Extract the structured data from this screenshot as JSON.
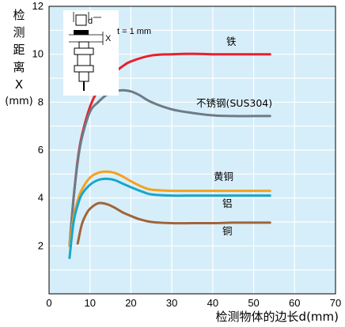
{
  "chart_data": {
    "type": "line",
    "xlabel": "检测物体的边长d(mm)",
    "ylabel_lines": [
      "检",
      "测",
      "距",
      "离",
      "X"
    ],
    "ylabel_unit": "(mm)",
    "xlim": [
      0,
      70
    ],
    "ylim": [
      0,
      12
    ],
    "x_ticks": [
      0,
      10,
      20,
      30,
      40,
      50,
      60,
      70
    ],
    "y_ticks": [
      2,
      4,
      6,
      8,
      10,
      12
    ],
    "grid": true,
    "background": "#d6eef9",
    "inset": {
      "d_label": "d",
      "x_label": "X",
      "t_label": "t = 1 mm"
    },
    "series": [
      {
        "name": "铁",
        "color": "#e8202a",
        "x": [
          5,
          6,
          7,
          8,
          10,
          12,
          15,
          18,
          20,
          25,
          30,
          35,
          40,
          45,
          50,
          54
        ],
        "y": [
          2.0,
          4.0,
          5.6,
          6.6,
          7.8,
          8.5,
          9.1,
          9.5,
          9.7,
          9.95,
          10.0,
          10.02,
          10.0,
          10.0,
          10.0,
          10.0
        ]
      },
      {
        "name": "不锈钢(SUS304)",
        "color": "#6e7b86",
        "x": [
          5,
          6,
          7,
          8,
          10,
          12,
          14,
          16,
          18,
          20,
          22,
          25,
          30,
          35,
          40,
          45,
          50,
          54
        ],
        "y": [
          2.0,
          4.0,
          5.5,
          6.5,
          7.6,
          8.0,
          8.3,
          8.45,
          8.5,
          8.45,
          8.3,
          8.0,
          7.7,
          7.55,
          7.45,
          7.42,
          7.42,
          7.42
        ]
      },
      {
        "name": "黄铜",
        "color": "#f5a01e",
        "x": [
          5,
          6,
          7,
          8,
          10,
          12,
          14,
          16,
          18,
          20,
          23,
          25,
          30,
          35,
          40,
          45,
          50,
          54
        ],
        "y": [
          2.0,
          3.2,
          3.9,
          4.35,
          4.85,
          5.05,
          5.1,
          5.05,
          4.9,
          4.7,
          4.45,
          4.35,
          4.3,
          4.3,
          4.3,
          4.3,
          4.3,
          4.3
        ]
      },
      {
        "name": "铝",
        "color": "#19a6cc",
        "x": [
          5,
          6,
          7,
          8,
          10,
          12,
          14,
          16,
          18,
          20,
          23,
          25,
          30,
          35,
          40,
          45,
          50,
          54
        ],
        "y": [
          1.5,
          3.0,
          3.7,
          4.15,
          4.55,
          4.75,
          4.8,
          4.75,
          4.6,
          4.45,
          4.25,
          4.15,
          4.1,
          4.1,
          4.1,
          4.1,
          4.1,
          4.1
        ]
      },
      {
        "name": "铜",
        "color": "#a0643a",
        "x": [
          7,
          8,
          9,
          10,
          12,
          14,
          16,
          18,
          20,
          22,
          25,
          30,
          35,
          40,
          45,
          50,
          54
        ],
        "y": [
          2.1,
          2.9,
          3.3,
          3.55,
          3.78,
          3.75,
          3.6,
          3.4,
          3.25,
          3.12,
          3.0,
          2.95,
          2.95,
          2.95,
          2.97,
          2.97,
          2.97
        ]
      }
    ]
  }
}
